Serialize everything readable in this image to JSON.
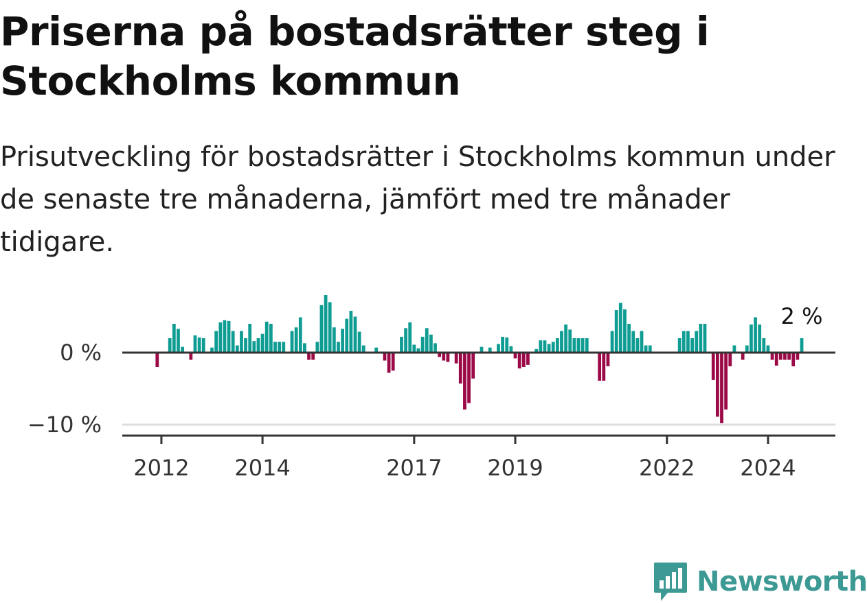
{
  "title": "Priserna på bostadsrätter steg i Stockholms kommun",
  "subtitle": "Prisutveckling för bostadsrätter i Stockholms kommun under de senaste tre månaderna, jämfört med tre månader tidigare.",
  "brand": {
    "name": "Newsworthy",
    "color": "#3d9994",
    "icon": "newsworthy-logo-icon"
  },
  "colors": {
    "positive": "#0f9c93",
    "negative": "#9b0a47",
    "axis": "#333333",
    "grid": "#dddddd"
  },
  "chart_data": {
    "type": "bar",
    "title": "Priserna på bostadsrätter steg i Stockholms kommun",
    "subtitle": "Prisutveckling för bostadsrätter i Stockholms kommun under de senaste tre månaderna, jämfört med tre månader tidigare.",
    "xlabel": "",
    "ylabel": "",
    "x_start": "2011-12",
    "x_end": "2024-03",
    "frequency": "monthly",
    "ylim": [
      -11,
      8
    ],
    "yticks": [
      {
        "value": 0,
        "label": "0 %"
      },
      {
        "value": -10,
        "label": "−10 %"
      }
    ],
    "xticks": [
      {
        "date": "2012-01",
        "label": "2012"
      },
      {
        "date": "2014-01",
        "label": "2014"
      },
      {
        "date": "2017-01",
        "label": "2017"
      },
      {
        "date": "2019-01",
        "label": "2019"
      },
      {
        "date": "2022-01",
        "label": "2022"
      },
      {
        "date": "2024-01",
        "label": "2024"
      }
    ],
    "end_label": "2 %",
    "grid": false,
    "series": [
      {
        "values": [
          -2,
          0,
          0,
          2,
          4,
          3.3,
          0.8,
          0,
          -1,
          2.4,
          2.1,
          2,
          0,
          0.7,
          3,
          4.2,
          4.5,
          4.4,
          3,
          1,
          3,
          2,
          4,
          1.6,
          2,
          2.6,
          4.3,
          4,
          1.5,
          1.5,
          1.5,
          0,
          3,
          3.5,
          4.9,
          1.3,
          -1,
          -1,
          1.5,
          6.6,
          8,
          7,
          3.5,
          1.5,
          3.3,
          4.7,
          5.8,
          5,
          2.9,
          1,
          0,
          0,
          0.7,
          0,
          -1.1,
          -2.8,
          -2.5,
          0,
          2.2,
          3.4,
          4.2,
          1.1,
          0.6,
          2.2,
          3.4,
          2.5,
          1.3,
          -0.6,
          -1.1,
          -1.3,
          0,
          -1.5,
          -4.3,
          -7.9,
          -7,
          -3.6,
          0,
          0.8,
          0,
          0.7,
          0,
          1.2,
          2.2,
          2.1,
          0.9,
          -0.8,
          -2.2,
          -2,
          -1.7,
          0,
          0.5,
          1.7,
          1.7,
          1.2,
          1.5,
          2,
          3,
          3.9,
          3.2,
          2,
          2,
          2,
          2,
          0,
          0,
          -3.9,
          -3.9,
          -1.9,
          3,
          5.9,
          6.9,
          6,
          4,
          3,
          2,
          3,
          1,
          1,
          0,
          0,
          0,
          0,
          0,
          0,
          2,
          3,
          3,
          2,
          3,
          4,
          4,
          0,
          -3.8,
          -8.9,
          -9.8,
          -7.9,
          -1.9,
          1,
          0,
          -1,
          1,
          3.9,
          4.9,
          3.9,
          2,
          1,
          -1,
          -1.8,
          -1,
          -1,
          -1,
          -1.9,
          -1,
          2
        ]
      }
    ]
  }
}
